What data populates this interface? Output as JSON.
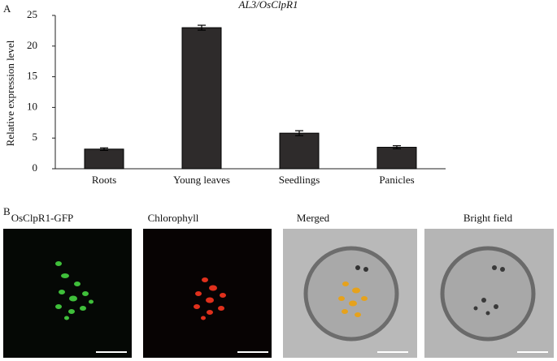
{
  "panel_labels": [
    "A",
    "B"
  ],
  "images": [
    "OsClpR1-GFP",
    "Chlorophyll",
    "Merged",
    "Bright field"
  ],
  "chart_data": {
    "type": "bar",
    "title": "AL3/OsClpR1",
    "y_label": "Relative expression level",
    "categories": [
      "Roots",
      "Young leaves",
      "Seedlings",
      "Panicles"
    ],
    "values": [
      3.2,
      23.0,
      5.8,
      3.5
    ],
    "errors": [
      0.2,
      0.4,
      0.4,
      0.25
    ],
    "color": "#2e2b2b",
    "ylim": [
      0,
      25
    ],
    "yticks": [
      0,
      5,
      10,
      15,
      20,
      25
    ]
  }
}
